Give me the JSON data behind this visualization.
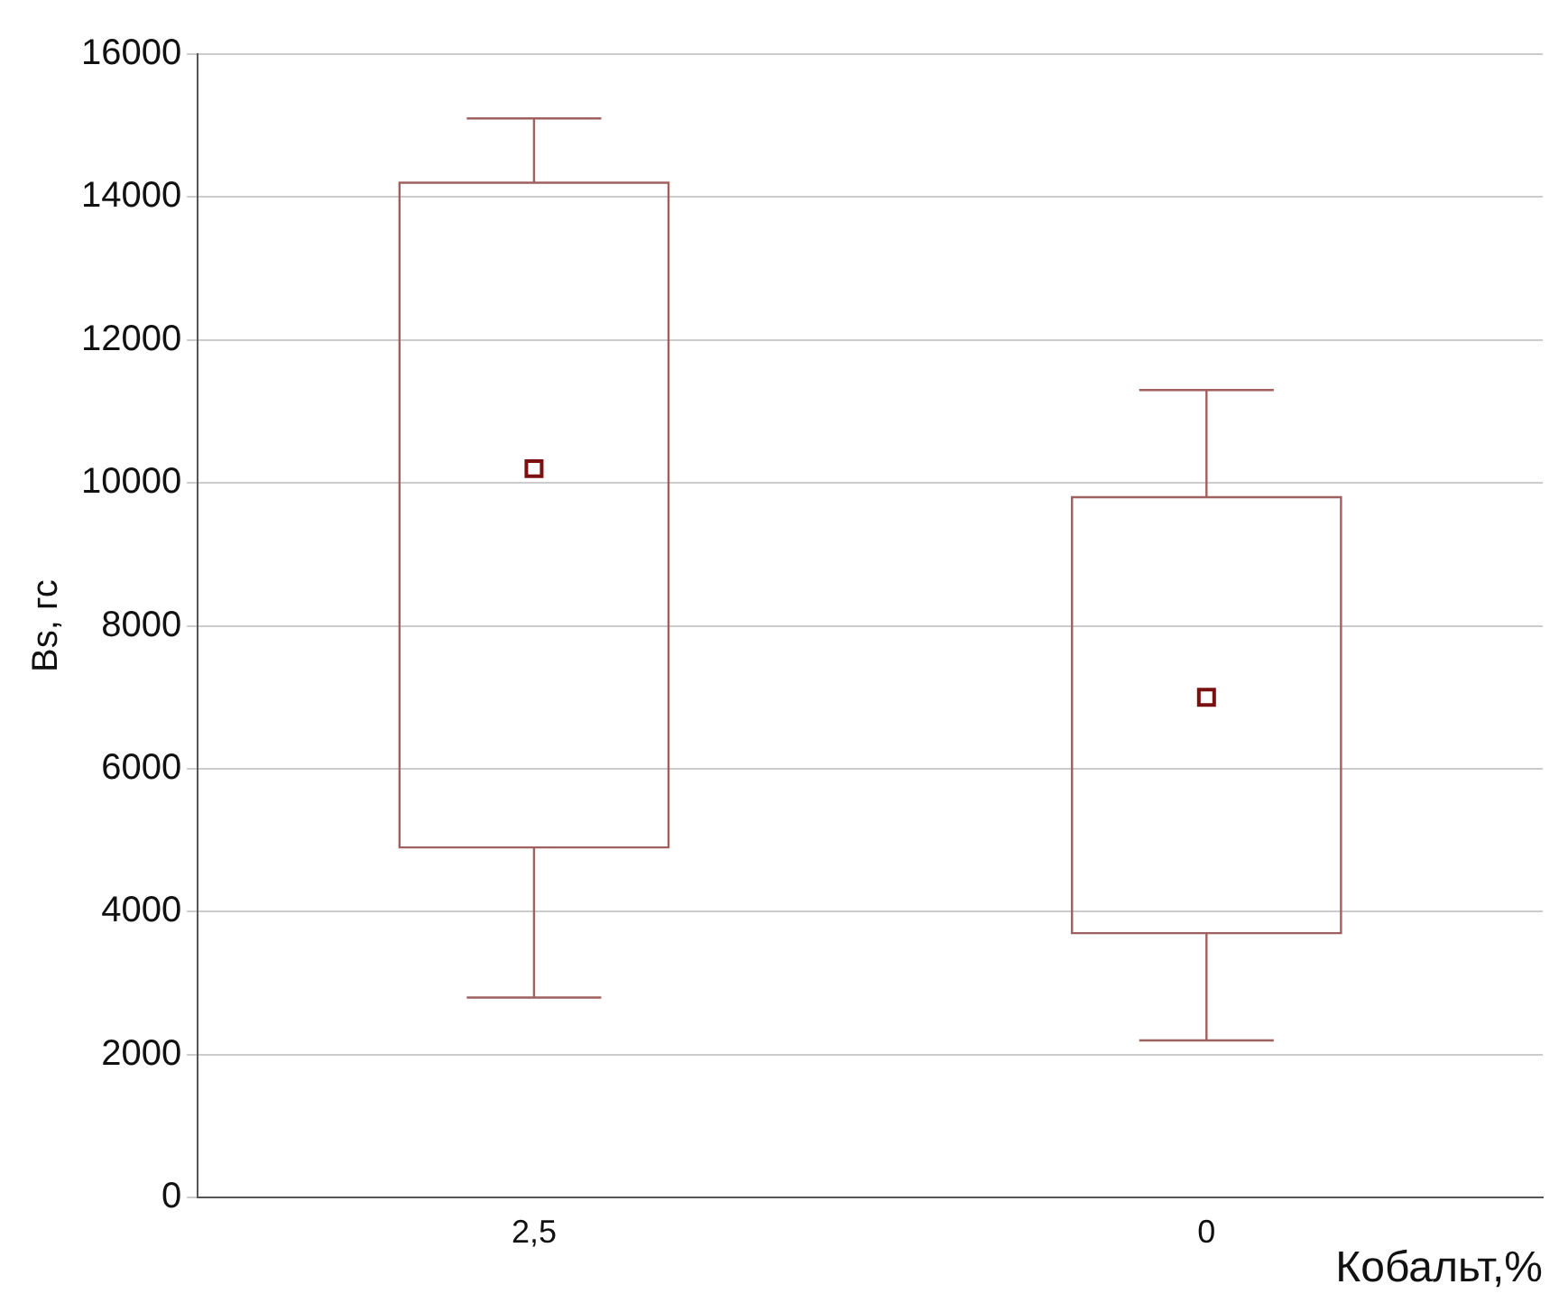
{
  "chart_data": {
    "type": "box",
    "xlabel": "Кобальт,%",
    "ylabel": "Bs, гс",
    "categories": [
      "2,5",
      "0"
    ],
    "boxes": [
      {
        "low": 2800,
        "q1": 4900,
        "median": 10200,
        "q3": 14200,
        "high": 15100
      },
      {
        "low": 2200,
        "q1": 3700,
        "median": 7000,
        "q3": 9800,
        "high": 11300
      }
    ],
    "color": "#a06060",
    "marker": "square",
    "ylim": [
      0,
      16000
    ],
    "yticks": [
      0,
      2000,
      4000,
      6000,
      8000,
      10000,
      12000,
      14000,
      16000
    ],
    "grid": "y",
    "legend": false
  }
}
